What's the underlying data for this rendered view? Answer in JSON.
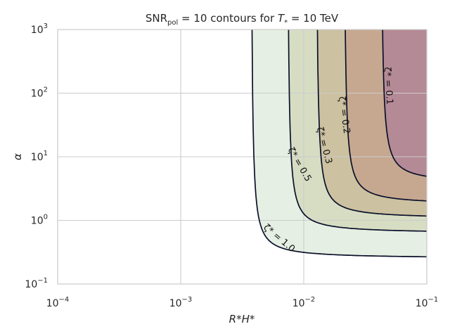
{
  "chart_data": {
    "type": "contour",
    "title_parts": {
      "pre": "SNR",
      "sub": "pol",
      "mid": " = 10 contours for ",
      "var": "T",
      "var_sub": "*",
      "post": " = 10 TeV"
    },
    "xlabel": "R*H*",
    "ylabel": "α",
    "x_scale": "log",
    "y_scale": "log",
    "xlim": [
      0.0001,
      0.1
    ],
    "ylim": [
      0.1,
      1000
    ],
    "x_ticks": [
      {
        "base": "10",
        "exp": "−4"
      },
      {
        "base": "10",
        "exp": "−3"
      },
      {
        "base": "10",
        "exp": "−2"
      },
      {
        "base": "10",
        "exp": "−1"
      }
    ],
    "y_ticks": [
      {
        "base": "10",
        "exp": "−1"
      },
      {
        "base": "10",
        "exp": "0"
      },
      {
        "base": "10",
        "exp": "1"
      },
      {
        "base": "10",
        "exp": "2"
      },
      {
        "base": "10",
        "exp": "3"
      }
    ],
    "grid": true,
    "contours": [
      {
        "label": "ζ* = 1.0",
        "fill": "#e6efe3",
        "asymptote_x": 0.0037,
        "asymptote_y": 0.25,
        "label_at": [
          0.0063,
          0.52
        ],
        "label_angle": 40
      },
      {
        "label": "ζ* = 0.5",
        "fill": "#d6ddc3",
        "asymptote_x": 0.0073,
        "asymptote_y": 0.62,
        "label_at": [
          0.0092,
          7.5
        ],
        "label_angle": 60
      },
      {
        "label": "ζ* = 0.3",
        "fill": "#ccc1a0",
        "asymptote_x": 0.0125,
        "asymptote_y": 1.05,
        "label_at": [
          0.0146,
          15
        ],
        "label_angle": 75
      },
      {
        "label": "ζ* = 0.2",
        "fill": "#c6a890",
        "asymptote_x": 0.021,
        "asymptote_y": 1.75,
        "label_at": [
          0.0212,
          45
        ],
        "label_angle": 82
      },
      {
        "label": "ζ* = 0.1",
        "fill": "#b48a96",
        "asymptote_x": 0.042,
        "asymptote_y": 3.8,
        "label_at": [
          0.0485,
          130
        ],
        "label_angle": 86
      }
    ]
  }
}
